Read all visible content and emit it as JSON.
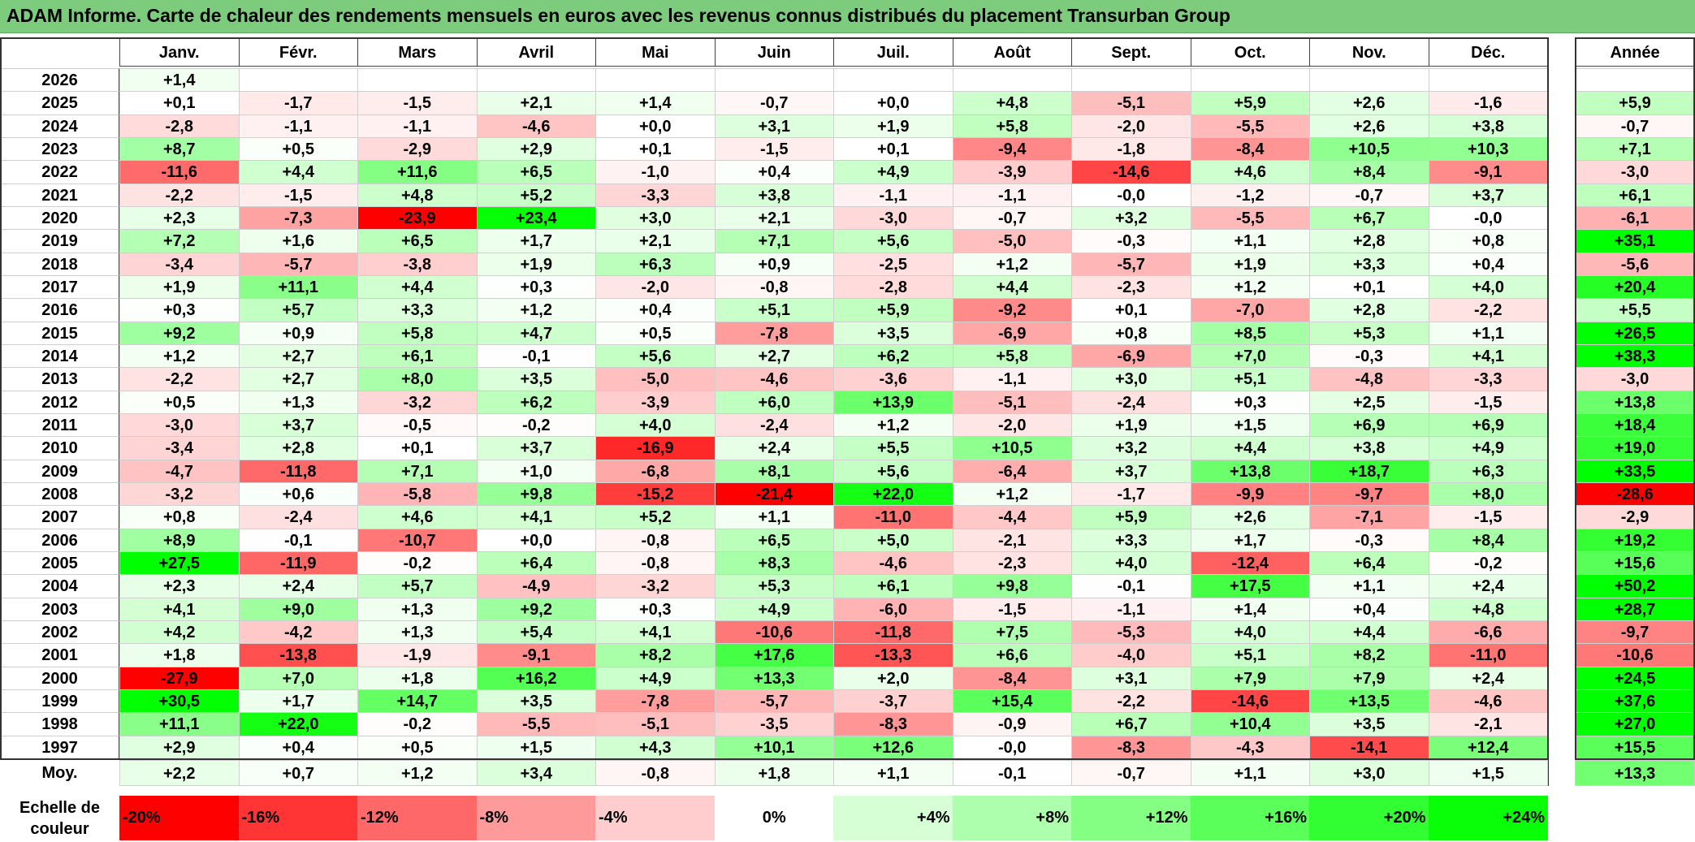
{
  "header": {
    "title": "ADAM Informe. Carte de chaleur des rendements mensuels en euros avec les revenus connus distribués du placement Transurban Group"
  },
  "chart_data": {
    "type": "heatmap",
    "title": "ADAM Informe. Carte de chaleur des rendements mensuels en euros avec les revenus connus distribués du placement Transurban Group",
    "columns": [
      "Janv.",
      "Févr.",
      "Mars",
      "Avril",
      "Mai",
      "Juin",
      "Juil.",
      "Août",
      "Sept.",
      "Oct.",
      "Nov.",
      "Déc."
    ],
    "annual_label": "Année",
    "rows": [
      {
        "year": "2026",
        "months": [
          "+1,4",
          "",
          "",
          "",
          "",
          "",
          "",
          "",
          "",
          "",
          "",
          ""
        ],
        "annual": ""
      },
      {
        "year": "2025",
        "months": [
          "+0,1",
          "-1,7",
          "-1,5",
          "+2,1",
          "+1,4",
          "-0,7",
          "+0,0",
          "+4,8",
          "-5,1",
          "+5,9",
          "+2,6",
          "-1,6"
        ],
        "annual": "+5,9"
      },
      {
        "year": "2024",
        "months": [
          "-2,8",
          "-1,1",
          "-1,1",
          "-4,6",
          "+0,0",
          "+3,1",
          "+1,9",
          "+5,8",
          "-2,0",
          "-5,5",
          "+2,6",
          "+3,8"
        ],
        "annual": "-0,7"
      },
      {
        "year": "2023",
        "months": [
          "+8,7",
          "+0,5",
          "-2,9",
          "+2,9",
          "+0,1",
          "-1,5",
          "+0,1",
          "-9,4",
          "-1,8",
          "-8,4",
          "+10,5",
          "+10,3"
        ],
        "annual": "+7,1"
      },
      {
        "year": "2022",
        "months": [
          "-11,6",
          "+4,4",
          "+11,6",
          "+6,5",
          "-1,0",
          "+0,4",
          "+4,9",
          "-3,9",
          "-14,6",
          "+4,6",
          "+8,4",
          "-9,1"
        ],
        "annual": "-3,0"
      },
      {
        "year": "2021",
        "months": [
          "-2,2",
          "-1,5",
          "+4,8",
          "+5,2",
          "-3,3",
          "+3,8",
          "-1,1",
          "-1,1",
          "-0,0",
          "-1,2",
          "-0,7",
          "+3,7"
        ],
        "annual": "+6,1"
      },
      {
        "year": "2020",
        "months": [
          "+2,3",
          "-7,3",
          "-23,9",
          "+23,4",
          "+3,0",
          "+2,1",
          "-3,0",
          "-0,7",
          "+3,2",
          "-5,5",
          "+6,7",
          "-0,0"
        ],
        "annual": "-6,1"
      },
      {
        "year": "2019",
        "months": [
          "+7,2",
          "+1,6",
          "+6,5",
          "+1,7",
          "+2,1",
          "+7,1",
          "+5,6",
          "-5,0",
          "-0,3",
          "+1,1",
          "+2,8",
          "+0,8"
        ],
        "annual": "+35,1"
      },
      {
        "year": "2018",
        "months": [
          "-3,4",
          "-5,7",
          "-3,8",
          "+1,9",
          "+6,3",
          "+0,9",
          "-2,5",
          "+1,2",
          "-5,7",
          "+1,9",
          "+3,3",
          "+0,4"
        ],
        "annual": "-5,6"
      },
      {
        "year": "2017",
        "months": [
          "+1,9",
          "+11,1",
          "+4,4",
          "+0,3",
          "-2,0",
          "-0,8",
          "-2,8",
          "+4,4",
          "-2,3",
          "+1,2",
          "+0,1",
          "+4,0"
        ],
        "annual": "+20,4"
      },
      {
        "year": "2016",
        "months": [
          "+0,3",
          "+5,7",
          "+3,3",
          "+1,2",
          "+0,4",
          "+5,1",
          "+5,9",
          "-9,2",
          "+0,1",
          "-7,0",
          "+2,8",
          "-2,2"
        ],
        "annual": "+5,5"
      },
      {
        "year": "2015",
        "months": [
          "+9,2",
          "+0,9",
          "+5,8",
          "+4,7",
          "+0,5",
          "-7,8",
          "+3,5",
          "-6,9",
          "+0,8",
          "+8,5",
          "+5,3",
          "+1,1"
        ],
        "annual": "+26,5"
      },
      {
        "year": "2014",
        "months": [
          "+1,2",
          "+2,7",
          "+6,1",
          "-0,1",
          "+5,6",
          "+2,7",
          "+6,2",
          "+5,8",
          "-6,9",
          "+7,0",
          "-0,3",
          "+4,1"
        ],
        "annual": "+38,3"
      },
      {
        "year": "2013",
        "months": [
          "-2,2",
          "+2,7",
          "+8,0",
          "+3,5",
          "-5,0",
          "-4,6",
          "-3,6",
          "-1,1",
          "+3,0",
          "+5,1",
          "-4,8",
          "-3,3"
        ],
        "annual": "-3,0"
      },
      {
        "year": "2012",
        "months": [
          "+0,5",
          "+1,3",
          "-3,2",
          "+6,2",
          "-3,9",
          "+6,0",
          "+13,9",
          "-5,1",
          "-2,4",
          "+0,3",
          "+2,5",
          "-1,5"
        ],
        "annual": "+13,8"
      },
      {
        "year": "2011",
        "months": [
          "-3,0",
          "+3,7",
          "-0,5",
          "-0,2",
          "+4,0",
          "-2,4",
          "+1,2",
          "-2,0",
          "+1,9",
          "+1,5",
          "+6,9",
          "+6,9"
        ],
        "annual": "+18,4"
      },
      {
        "year": "2010",
        "months": [
          "-3,4",
          "+2,8",
          "+0,1",
          "+3,7",
          "-16,9",
          "+2,4",
          "+5,5",
          "+10,5",
          "+3,2",
          "+4,4",
          "+3,8",
          "+4,9"
        ],
        "annual": "+19,0"
      },
      {
        "year": "2009",
        "months": [
          "-4,7",
          "-11,8",
          "+7,1",
          "+1,0",
          "-6,8",
          "+8,1",
          "+5,6",
          "-6,4",
          "+3,7",
          "+13,8",
          "+18,7",
          "+6,3"
        ],
        "annual": "+33,5"
      },
      {
        "year": "2008",
        "months": [
          "-3,2",
          "+0,6",
          "-5,8",
          "+9,8",
          "-15,2",
          "-21,4",
          "+22,0",
          "+1,2",
          "-1,7",
          "-9,9",
          "-9,7",
          "+8,0"
        ],
        "annual": "-28,6"
      },
      {
        "year": "2007",
        "months": [
          "+0,8",
          "-2,4",
          "+4,6",
          "+4,1",
          "+5,2",
          "+1,1",
          "-11,0",
          "-4,4",
          "+5,9",
          "+2,6",
          "-7,1",
          "-1,5"
        ],
        "annual": "-2,9"
      },
      {
        "year": "2006",
        "months": [
          "+8,9",
          "-0,1",
          "-10,7",
          "+0,0",
          "-0,8",
          "+6,5",
          "+5,0",
          "-2,1",
          "+3,3",
          "+1,7",
          "-0,3",
          "+8,4"
        ],
        "annual": "+19,2"
      },
      {
        "year": "2005",
        "months": [
          "+27,5",
          "-11,9",
          "-0,2",
          "+6,4",
          "-0,8",
          "+8,3",
          "-4,6",
          "-2,3",
          "+4,0",
          "-12,4",
          "+6,4",
          "-0,2"
        ],
        "annual": "+15,6"
      },
      {
        "year": "2004",
        "months": [
          "+2,3",
          "+2,4",
          "+5,7",
          "-4,9",
          "-3,2",
          "+5,3",
          "+6,1",
          "+9,8",
          "-0,1",
          "+17,5",
          "+1,1",
          "+2,4"
        ],
        "annual": "+50,2"
      },
      {
        "year": "2003",
        "months": [
          "+4,1",
          "+9,0",
          "+1,3",
          "+9,2",
          "+0,3",
          "+4,9",
          "-6,0",
          "-1,5",
          "-1,1",
          "+1,4",
          "+0,4",
          "+4,8"
        ],
        "annual": "+28,7"
      },
      {
        "year": "2002",
        "months": [
          "+4,2",
          "-4,2",
          "+1,3",
          "+5,4",
          "+4,1",
          "-10,6",
          "-11,8",
          "+7,5",
          "-5,3",
          "+4,0",
          "+4,4",
          "-6,6"
        ],
        "annual": "-9,7"
      },
      {
        "year": "2001",
        "months": [
          "+1,8",
          "-13,8",
          "-1,9",
          "-9,1",
          "+8,2",
          "+17,6",
          "-13,3",
          "+6,6",
          "-4,0",
          "+5,1",
          "+8,2",
          "-11,0"
        ],
        "annual": "-10,6"
      },
      {
        "year": "2000",
        "months": [
          "-27,9",
          "+7,0",
          "+1,8",
          "+16,2",
          "+4,9",
          "+13,3",
          "+2,0",
          "-8,4",
          "+3,1",
          "+7,9",
          "+7,9",
          "+2,4"
        ],
        "annual": "+24,5"
      },
      {
        "year": "1999",
        "months": [
          "+30,5",
          "+1,7",
          "+14,7",
          "+3,5",
          "-7,8",
          "-5,7",
          "-3,7",
          "+15,4",
          "-2,2",
          "-14,6",
          "+13,5",
          "-4,6"
        ],
        "annual": "+37,6"
      },
      {
        "year": "1998",
        "months": [
          "+11,1",
          "+22,0",
          "-0,2",
          "-5,5",
          "-5,1",
          "-3,5",
          "-8,3",
          "-0,9",
          "+6,7",
          "+10,4",
          "+3,5",
          "-2,1"
        ],
        "annual": "+27,0"
      },
      {
        "year": "1997",
        "months": [
          "+2,9",
          "+0,4",
          "+0,5",
          "+1,5",
          "+4,3",
          "+10,1",
          "+12,6",
          "-0,0",
          "-8,3",
          "-4,3",
          "-14,1",
          "+12,4"
        ],
        "annual": "+15,5"
      }
    ],
    "average": {
      "label": "Moy.",
      "months": [
        "+2,2",
        "+0,7",
        "+1,2",
        "+3,4",
        "-0,8",
        "+1,8",
        "+1,1",
        "-0,1",
        "-0,7",
        "+1,1",
        "+3,0",
        "+1,5"
      ],
      "annual": "+13,3"
    },
    "color_scale": {
      "label_line1": "Echelle de",
      "label_line2": "couleur",
      "stops": [
        {
          "label": "-20%",
          "value": -20,
          "color": "#ff0000"
        },
        {
          "label": "-16%",
          "value": -16,
          "color": "#ff3434"
        },
        {
          "label": "-12%",
          "value": -12,
          "color": "#ff6868"
        },
        {
          "label": "-8%",
          "value": -8,
          "color": "#ff9a9a"
        },
        {
          "label": "-4%",
          "value": -4,
          "color": "#ffcdcd"
        },
        {
          "label": "0%",
          "value": 0,
          "color": "#ffffff"
        },
        {
          "label": "+4%",
          "value": 4,
          "color": "#d6ffd6"
        },
        {
          "label": "+8%",
          "value": 8,
          "color": "#adffad"
        },
        {
          "label": "+12%",
          "value": 12,
          "color": "#84ff84"
        },
        {
          "label": "+16%",
          "value": 16,
          "color": "#5aff5a"
        },
        {
          "label": "+20%",
          "value": 20,
          "color": "#31ff31"
        },
        {
          "label": "+24%",
          "value": 24,
          "color": "#08ff08"
        }
      ],
      "negative_limit": -20,
      "positive_limit": 24
    },
    "colors": {
      "title_bar": "#7dcb7d",
      "negative_max": "#ff0000",
      "positive_max": "#00ff00",
      "neutral": "#ffffff"
    }
  }
}
